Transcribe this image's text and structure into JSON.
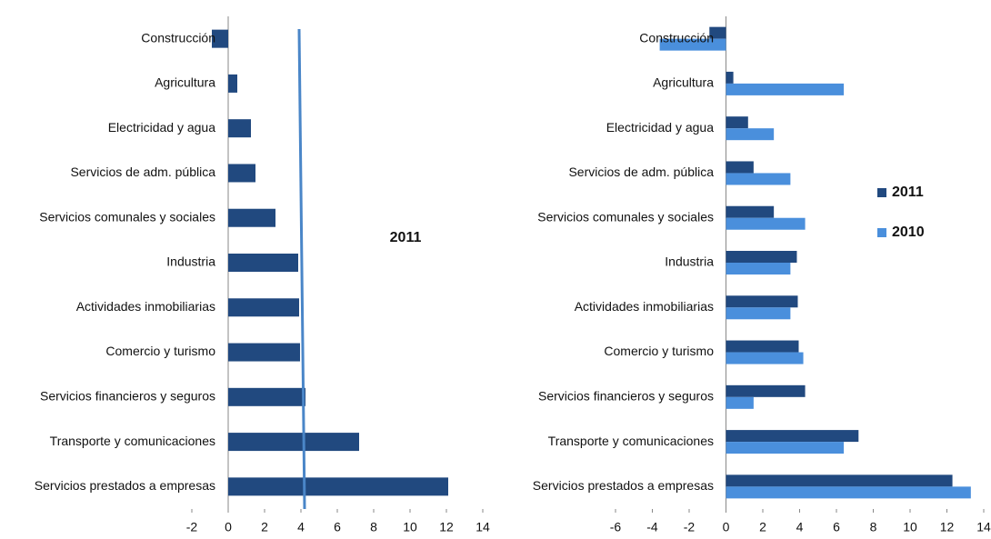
{
  "chart_data": [
    {
      "type": "bar",
      "orientation": "horizontal",
      "categories": [
        "Construcción",
        "Agricultura",
        "Electricidad y agua",
        "Servicios de adm. pública",
        "Servicios comunales y sociales",
        "Industria",
        "Actividades inmobiliarias",
        "Comercio y turismo",
        "Servicios financieros y seguros",
        "Transporte y comunicaciones",
        "Servicios prestados a empresas"
      ],
      "series": [
        {
          "color": "#21497f",
          "values": [
            -0.9,
            0.5,
            1.25,
            1.5,
            2.6,
            3.85,
            3.9,
            3.95,
            4.25,
            7.2,
            12.1
          ]
        }
      ],
      "xlim": [
        -2,
        14
      ],
      "xticks": [
        -2,
        0,
        2,
        4,
        6,
        8,
        10,
        12,
        14
      ],
      "reference_line": {
        "x_top": 3.9,
        "x_bottom": 4.2,
        "color": "#4a86c8"
      },
      "annotation": "2011"
    },
    {
      "type": "bar",
      "orientation": "horizontal",
      "categories": [
        "Construcción",
        "Agricultura",
        "Electricidad y agua",
        "Servicios de adm. pública",
        "Servicios comunales y sociales",
        "Industria",
        "Actividades inmobiliarias",
        "Comercio y turismo",
        "Servicios financieros y seguros",
        "Transporte y comunicaciones",
        "Servicios prestados a empresas"
      ],
      "series": [
        {
          "name": "2011",
          "color": "#21497f",
          "values": [
            -0.9,
            0.4,
            1.2,
            1.5,
            2.6,
            3.85,
            3.9,
            3.95,
            4.3,
            7.2,
            12.3
          ]
        },
        {
          "name": "2010",
          "color": "#4a8fdc",
          "values": [
            -3.6,
            6.4,
            2.6,
            3.5,
            4.3,
            3.5,
            3.5,
            4.2,
            1.5,
            6.4,
            13.3
          ]
        }
      ],
      "xlim": [
        -6,
        14
      ],
      "xticks": [
        -6,
        -4,
        -2,
        0,
        2,
        4,
        6,
        8,
        10,
        12,
        14
      ],
      "legend": "right"
    }
  ]
}
